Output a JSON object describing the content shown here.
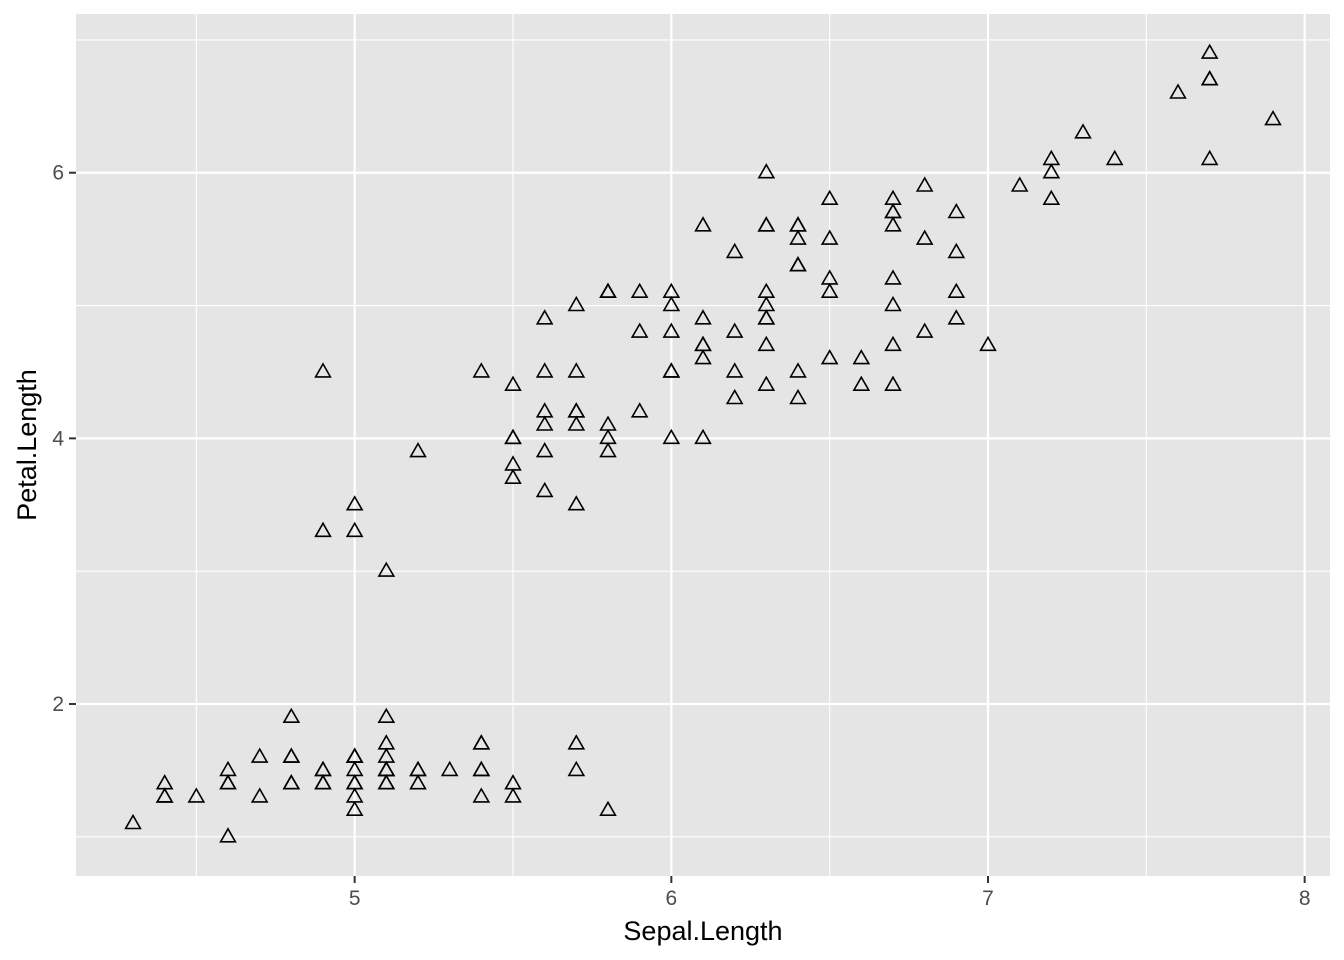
{
  "chart_data": {
    "type": "scatter",
    "title": "",
    "xlabel": "Sepal.Length",
    "ylabel": "Petal.Length",
    "xlim": [
      4.12,
      8.08
    ],
    "ylim": [
      0.705,
      7.195
    ],
    "x_ticks": [
      5,
      6,
      7,
      8
    ],
    "y_ticks": [
      2,
      4,
      6
    ],
    "x_tick_labels": [
      "5",
      "6",
      "7",
      "8"
    ],
    "y_tick_labels": [
      "2",
      "4",
      "6"
    ],
    "grid": true,
    "legend": "none",
    "marker": "open-triangle",
    "colors": {
      "panel_background": "#e5e5e5",
      "grid": "#ffffff",
      "marker_stroke": "#000000"
    },
    "x": [
      5.1,
      4.9,
      4.7,
      4.6,
      5.0,
      5.4,
      4.6,
      5.0,
      4.4,
      4.9,
      5.4,
      4.8,
      4.8,
      4.3,
      5.8,
      5.7,
      5.4,
      5.1,
      5.7,
      5.1,
      5.4,
      5.1,
      4.6,
      5.1,
      4.8,
      5.0,
      5.0,
      5.2,
      5.2,
      4.7,
      4.8,
      5.4,
      5.2,
      5.5,
      4.9,
      5.0,
      5.5,
      4.9,
      4.4,
      5.1,
      5.0,
      4.5,
      4.4,
      5.0,
      5.1,
      4.8,
      5.1,
      4.6,
      5.3,
      5.0,
      7.0,
      6.4,
      6.9,
      5.5,
      6.5,
      5.7,
      6.3,
      4.9,
      6.6,
      5.2,
      5.0,
      5.9,
      6.0,
      6.1,
      5.6,
      6.7,
      5.6,
      5.8,
      6.2,
      5.6,
      5.9,
      6.1,
      6.3,
      6.1,
      6.4,
      6.6,
      6.8,
      6.7,
      6.0,
      5.7,
      5.5,
      5.5,
      5.8,
      6.0,
      5.4,
      6.0,
      6.7,
      6.3,
      5.6,
      5.5,
      5.5,
      6.1,
      5.8,
      5.0,
      5.6,
      5.7,
      5.7,
      6.2,
      5.1,
      5.7,
      6.3,
      5.8,
      7.1,
      6.3,
      6.5,
      7.6,
      4.9,
      7.3,
      6.7,
      7.2,
      6.5,
      6.4,
      6.8,
      5.7,
      5.8,
      6.4,
      6.5,
      7.7,
      7.7,
      6.0,
      6.9,
      5.6,
      7.7,
      6.3,
      6.7,
      7.2,
      6.2,
      6.1,
      6.4,
      7.2,
      7.4,
      7.9,
      6.4,
      6.3,
      6.1,
      7.7,
      6.3,
      6.4,
      6.0,
      6.9,
      6.7,
      6.9,
      5.8,
      6.8,
      6.7,
      6.7,
      6.3,
      6.5,
      6.2,
      5.9
    ],
    "y": [
      1.4,
      1.4,
      1.3,
      1.5,
      1.4,
      1.7,
      1.4,
      1.5,
      1.4,
      1.5,
      1.5,
      1.6,
      1.4,
      1.1,
      1.2,
      1.5,
      1.3,
      1.4,
      1.7,
      1.5,
      1.7,
      1.5,
      1.0,
      1.7,
      1.9,
      1.6,
      1.6,
      1.5,
      1.4,
      1.6,
      1.6,
      1.5,
      1.5,
      1.4,
      1.5,
      1.2,
      1.3,
      1.4,
      1.3,
      1.5,
      1.3,
      1.3,
      1.3,
      1.6,
      1.9,
      1.4,
      1.6,
      1.4,
      1.5,
      1.4,
      4.7,
      4.5,
      4.9,
      4.0,
      4.6,
      4.5,
      4.7,
      3.3,
      4.6,
      3.9,
      3.5,
      4.2,
      4.0,
      4.7,
      3.6,
      4.4,
      4.5,
      4.1,
      4.5,
      3.9,
      4.8,
      4.0,
      4.9,
      4.7,
      4.3,
      4.4,
      4.8,
      5.0,
      4.5,
      3.5,
      3.8,
      3.7,
      3.9,
      5.1,
      4.5,
      4.5,
      4.7,
      4.4,
      4.1,
      4.0,
      4.4,
      4.6,
      4.0,
      3.3,
      4.2,
      4.2,
      4.2,
      4.3,
      3.0,
      4.1,
      6.0,
      5.1,
      5.9,
      5.6,
      5.8,
      6.6,
      4.5,
      6.3,
      5.8,
      6.1,
      5.1,
      5.3,
      5.5,
      5.0,
      5.1,
      5.3,
      5.5,
      6.7,
      6.9,
      5.0,
      5.7,
      4.9,
      6.7,
      4.9,
      5.7,
      6.0,
      4.8,
      4.9,
      5.6,
      5.8,
      6.1,
      6.4,
      5.6,
      5.1,
      5.6,
      6.1,
      5.6,
      5.5,
      4.8,
      5.4,
      5.6,
      5.1,
      5.1,
      5.9,
      5.7,
      5.2,
      5.0,
      5.2,
      5.4,
      5.1
    ]
  }
}
